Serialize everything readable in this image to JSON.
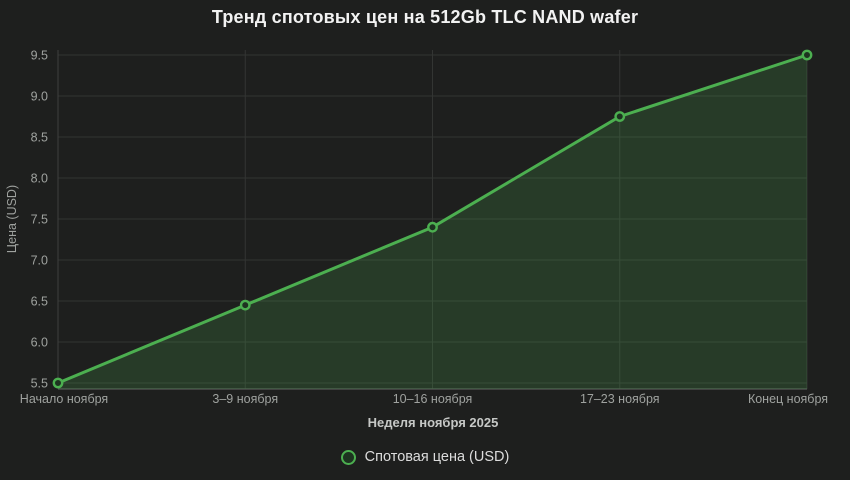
{
  "chart_data": {
    "type": "line",
    "title": "Тренд спотовых цен на 512Gb TLC NAND wafer",
    "categories": [
      "Начало ноября",
      "3–9 ноября",
      "10–16 ноября",
      "17–23 ноября",
      "Конец ноября"
    ],
    "series": [
      {
        "name": "Спотовая цена (USD)",
        "values": [
          5.5,
          6.45,
          7.4,
          8.75,
          9.5
        ]
      }
    ],
    "xlabel": "Неделя ноября 2025",
    "ylabel": "Цена (USD)",
    "ylim": [
      5.5,
      9.5
    ],
    "yticks": [
      5.5,
      6.0,
      6.5,
      7.0,
      7.5,
      8.0,
      8.5,
      9.0,
      9.5
    ],
    "grid": true,
    "legend_position": "bottom",
    "colors": {
      "line": "#4caf50",
      "area_fill": "rgba(76,175,80,0.20)",
      "marker_fill": "#1d3320",
      "grid": "#333533",
      "axis_x": "#4d4f4d",
      "axis_y": "#3d3f3d",
      "tick_text": "#9fa29f",
      "axis_title_text": "#c6c8c6",
      "title_text": "#f2f2f2",
      "background": "#1e1f1e"
    }
  }
}
